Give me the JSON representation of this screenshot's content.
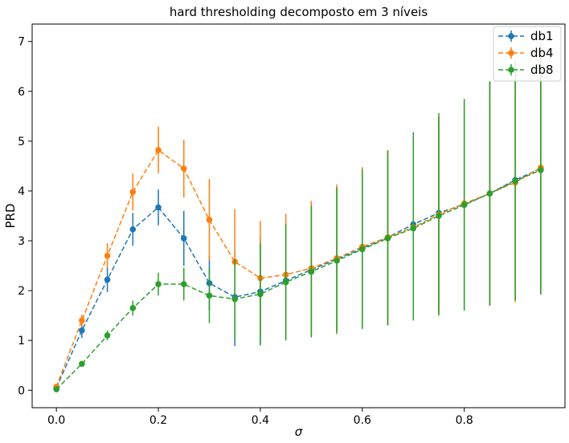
{
  "chart_data": {
    "type": "line",
    "title": "hard thresholding decomposto em 3 níveis",
    "xlabel": "σ",
    "ylabel": "PRD",
    "xlim": [
      -0.0475,
      0.9975
    ],
    "ylim": [
      -0.35,
      7.35
    ],
    "xticks": [
      0.0,
      0.2,
      0.4,
      0.6,
      0.8
    ],
    "xtick_labels": [
      "0.0",
      "0.2",
      "0.4",
      "0.6",
      "0.8"
    ],
    "yticks": [
      0,
      1,
      2,
      3,
      4,
      5,
      6,
      7
    ],
    "ytick_labels": [
      "0",
      "1",
      "2",
      "3",
      "4",
      "5",
      "6",
      "7"
    ],
    "grid": false,
    "legend": "top-right",
    "x": [
      0.0,
      0.05,
      0.1,
      0.15,
      0.2,
      0.25,
      0.3,
      0.35,
      0.4,
      0.45,
      0.5,
      0.55,
      0.6,
      0.65,
      0.7,
      0.75,
      0.8,
      0.85,
      0.9,
      0.95
    ],
    "series": [
      {
        "name": "db1",
        "color": "#1f77b4",
        "values": [
          0.05,
          1.2,
          2.22,
          3.23,
          3.67,
          3.05,
          2.15,
          1.87,
          1.98,
          2.2,
          2.42,
          2.63,
          2.85,
          3.07,
          3.33,
          3.56,
          3.73,
          3.95,
          4.22,
          4.45
        ],
        "errors": [
          0.02,
          0.15,
          0.25,
          0.33,
          0.36,
          0.55,
          0.55,
          0.98,
          1.08,
          1.15,
          1.3,
          1.45,
          1.6,
          1.75,
          1.85,
          2.0,
          2.1,
          2.25,
          2.4,
          2.5
        ]
      },
      {
        "name": "db4",
        "color": "#ff7f0e",
        "values": [
          0.07,
          1.4,
          2.7,
          3.98,
          4.82,
          4.45,
          3.42,
          2.58,
          2.25,
          2.32,
          2.45,
          2.65,
          2.88,
          3.07,
          3.27,
          3.53,
          3.75,
          3.95,
          4.17,
          4.47
        ],
        "errors": [
          0.02,
          0.12,
          0.25,
          0.37,
          0.47,
          0.58,
          0.82,
          1.05,
          1.15,
          1.22,
          1.35,
          1.48,
          1.6,
          1.75,
          1.85,
          2.0,
          2.1,
          2.25,
          2.4,
          2.5
        ]
      },
      {
        "name": "db8",
        "color": "#2ca02c",
        "values": [
          0.02,
          0.53,
          1.1,
          1.65,
          2.13,
          2.13,
          1.9,
          1.83,
          1.93,
          2.17,
          2.38,
          2.6,
          2.83,
          3.05,
          3.25,
          3.5,
          3.72,
          3.95,
          4.2,
          4.42
        ],
        "errors": [
          0.01,
          0.04,
          0.1,
          0.15,
          0.23,
          0.33,
          0.55,
          0.8,
          1.02,
          1.17,
          1.32,
          1.47,
          1.6,
          1.75,
          1.85,
          2.0,
          2.12,
          2.25,
          2.4,
          2.5
        ]
      }
    ]
  }
}
